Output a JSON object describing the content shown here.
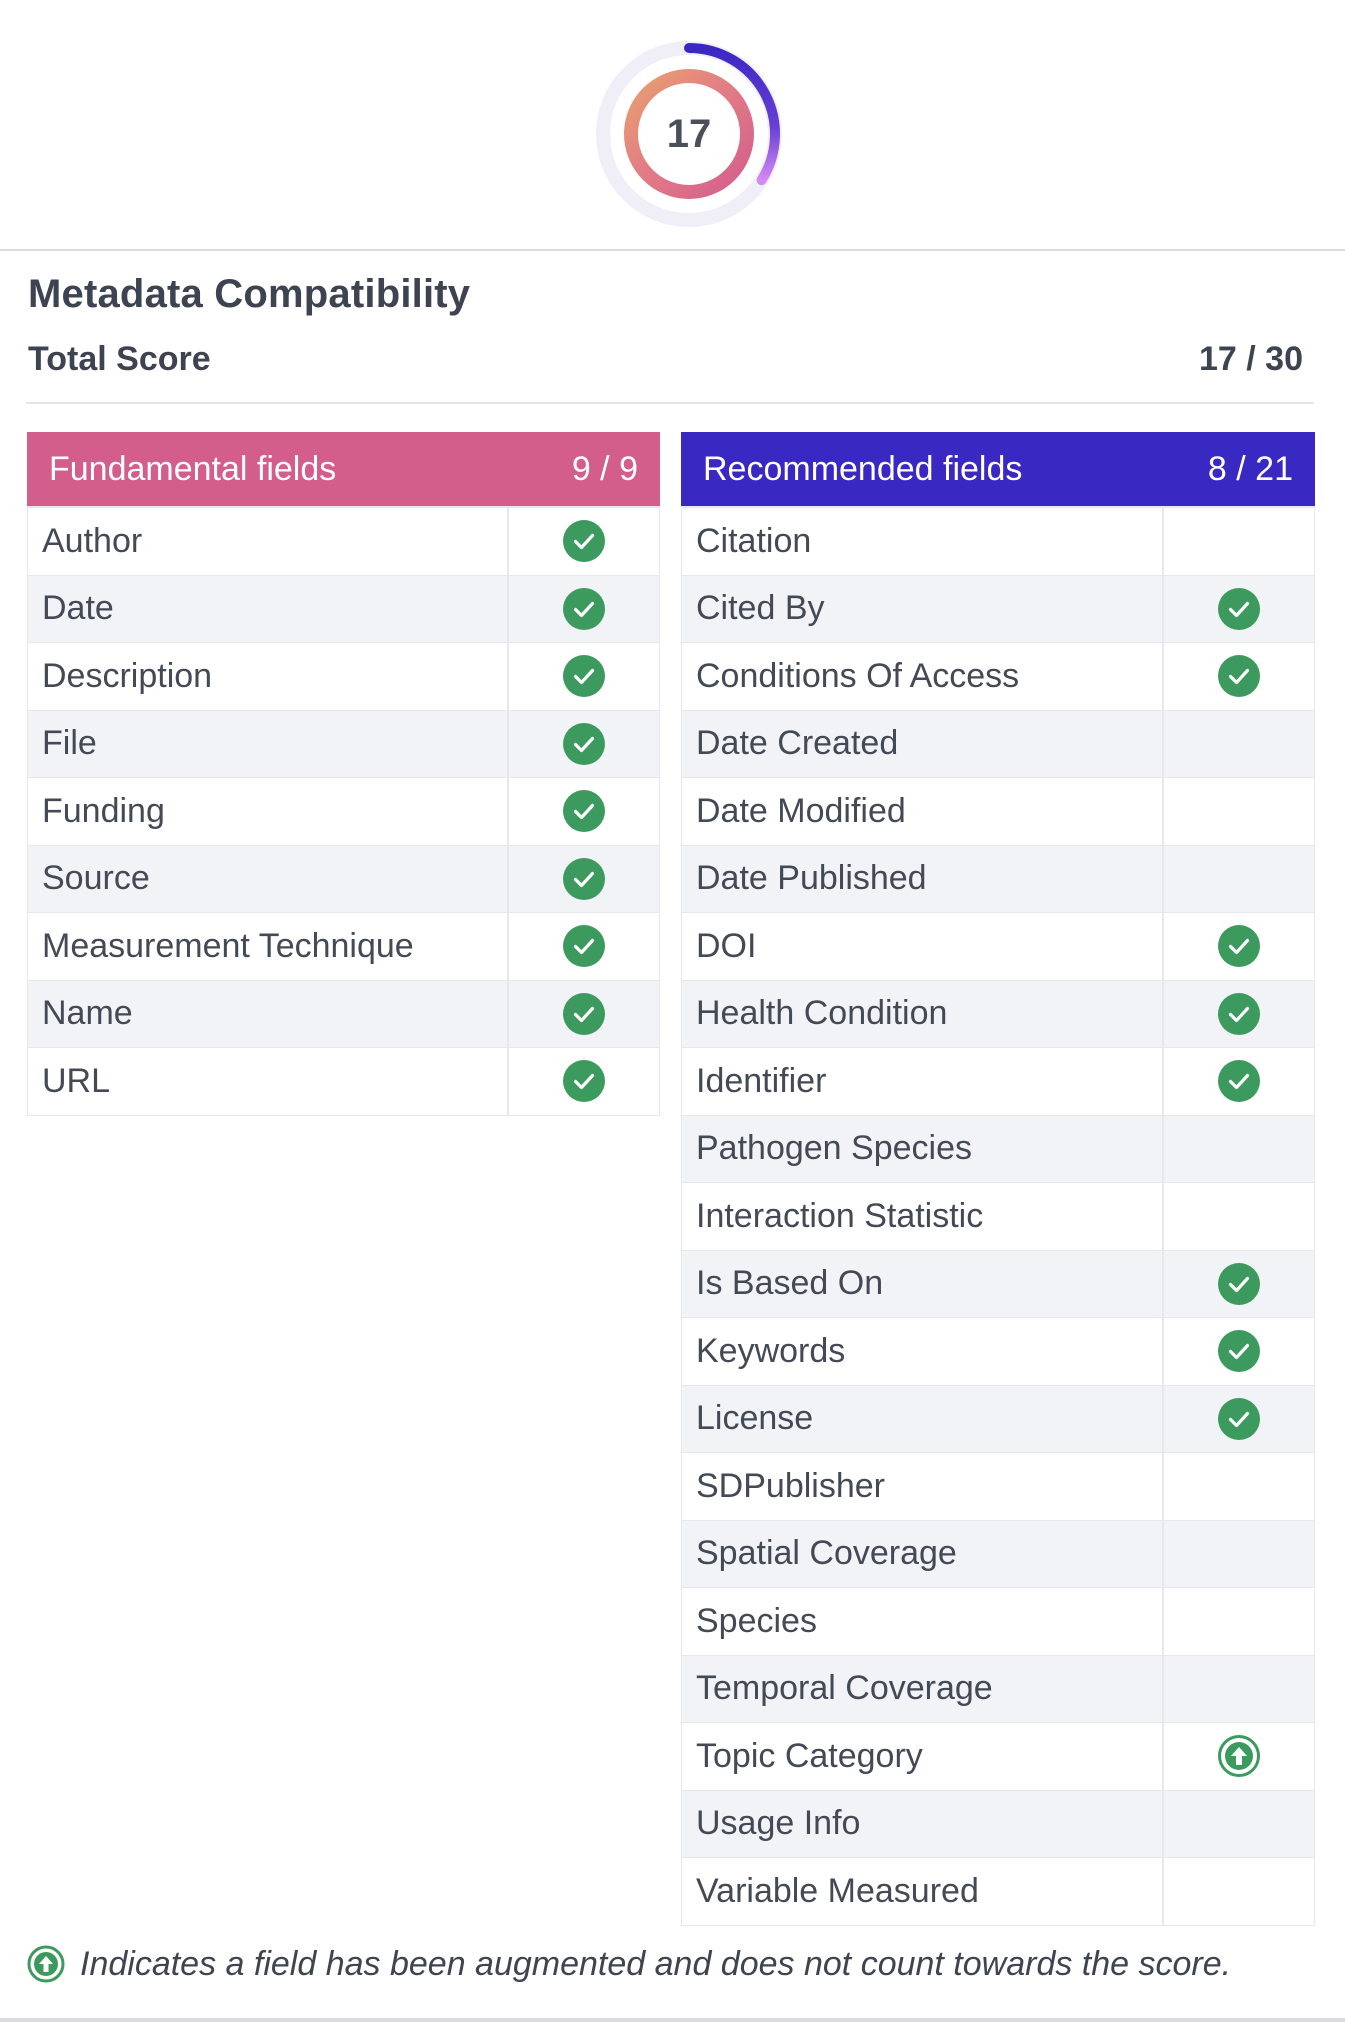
{
  "score": {
    "value": "17",
    "fraction": 0.567,
    "colors": {
      "outer": "#3a28c2",
      "inner": "#d35e8c",
      "accent": "#e8a06f",
      "track": "#f0eff8"
    }
  },
  "title": "Metadata Compatibility",
  "total": {
    "label": "Total Score",
    "value": "17 / 30"
  },
  "fundamental": {
    "header": "Fundamental fields",
    "score": "9 / 9",
    "color": "#d35e8c",
    "rows": [
      {
        "name": "Author",
        "status": "check"
      },
      {
        "name": "Date",
        "status": "check"
      },
      {
        "name": "Description",
        "status": "check"
      },
      {
        "name": "File",
        "status": "check"
      },
      {
        "name": "Funding",
        "status": "check"
      },
      {
        "name": "Source",
        "status": "check"
      },
      {
        "name": "Measurement Technique",
        "status": "check"
      },
      {
        "name": "Name",
        "status": "check"
      },
      {
        "name": "URL",
        "status": "check"
      }
    ]
  },
  "recommended": {
    "header": "Recommended fields",
    "score": "8 / 21",
    "color": "#3a28c2",
    "rows": [
      {
        "name": "Citation",
        "status": "none"
      },
      {
        "name": "Cited By",
        "status": "check"
      },
      {
        "name": "Conditions Of Access",
        "status": "check"
      },
      {
        "name": "Date Created",
        "status": "none"
      },
      {
        "name": "Date Modified",
        "status": "none"
      },
      {
        "name": "Date Published",
        "status": "none"
      },
      {
        "name": "DOI",
        "status": "check"
      },
      {
        "name": "Health Condition",
        "status": "check"
      },
      {
        "name": "Identifier",
        "status": "check"
      },
      {
        "name": "Pathogen Species",
        "status": "none"
      },
      {
        "name": "Interaction Statistic",
        "status": "none"
      },
      {
        "name": "Is Based On",
        "status": "check"
      },
      {
        "name": "Keywords",
        "status": "check"
      },
      {
        "name": "License",
        "status": "check"
      },
      {
        "name": "SDPublisher",
        "status": "none"
      },
      {
        "name": "Spatial Coverage",
        "status": "none"
      },
      {
        "name": "Species",
        "status": "none"
      },
      {
        "name": "Temporal Coverage",
        "status": "none"
      },
      {
        "name": "Topic Category",
        "status": "augmented"
      },
      {
        "name": "Usage Info",
        "status": "none"
      },
      {
        "name": "Variable Measured",
        "status": "none"
      }
    ]
  },
  "footnote": "Indicates a field has been augmented and does not count towards the score.",
  "icons": {
    "check": "check-circle-icon",
    "augmented": "arrow-up-circle-icon"
  },
  "status_color": "#3d9a5f"
}
